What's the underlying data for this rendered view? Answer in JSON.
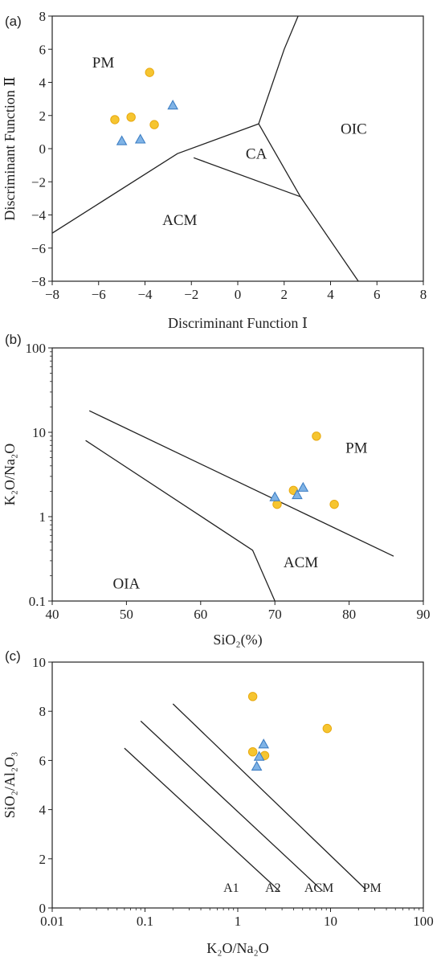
{
  "colors": {
    "circle_fill": "#F6C530",
    "circle_stroke": "#E8A90F",
    "triangle_fill": "#7FB3E6",
    "triangle_stroke": "#3E7FC4",
    "line": "#222222"
  },
  "chart_data": [
    {
      "panel_label": "(a)",
      "type": "scatter",
      "xlabel": "Discriminant Function Ⅰ",
      "ylabel": "Discriminant Function Ⅱ",
      "xlim": [
        -8,
        8
      ],
      "ylim": [
        -8,
        8
      ],
      "xticks": [
        -8,
        -6,
        -4,
        -2,
        0,
        2,
        4,
        6,
        8
      ],
      "yticks": [
        -8,
        -6,
        -4,
        -2,
        0,
        2,
        4,
        6,
        8
      ],
      "xtick_labels": [
        "−8",
        "−6",
        "−4",
        "−2",
        "0",
        "2",
        "4",
        "6",
        "8"
      ],
      "ytick_labels": [
        "−8",
        "−6",
        "−4",
        "−2",
        "0",
        "2",
        "4",
        "6",
        "8"
      ],
      "boundaries": [
        [
          [
            -8,
            -5.1
          ],
          [
            -2.6,
            -0.3
          ],
          [
            0.9,
            1.5
          ]
        ],
        [
          [
            0.9,
            1.5
          ],
          [
            2.0,
            6.0
          ],
          [
            2.6,
            8.0
          ]
        ],
        [
          [
            0.9,
            1.5
          ],
          [
            2.7,
            -2.9
          ]
        ],
        [
          [
            -1.9,
            -0.55
          ],
          [
            2.7,
            -2.9
          ]
        ],
        [
          [
            2.7,
            -2.9
          ],
          [
            5.2,
            -8.0
          ]
        ]
      ],
      "regions": [
        {
          "label": "PM",
          "x": -5.8,
          "y": 4.9
        },
        {
          "label": "CA",
          "x": 0.8,
          "y": -0.6
        },
        {
          "label": "OIC",
          "x": 5.0,
          "y": 0.9
        },
        {
          "label": "ACM",
          "x": -2.5,
          "y": -4.6
        }
      ],
      "series": [
        {
          "marker": "circle",
          "points": [
            [
              -3.8,
              4.6
            ],
            [
              -4.6,
              1.9
            ],
            [
              -5.3,
              1.75
            ],
            [
              -3.6,
              1.45
            ]
          ]
        },
        {
          "marker": "triangle",
          "points": [
            [
              -2.8,
              2.6
            ],
            [
              -5.0,
              0.45
            ],
            [
              -4.2,
              0.55
            ]
          ]
        }
      ]
    },
    {
      "panel_label": "(b)",
      "type": "scatter",
      "xlabel": "SiO₂(%)",
      "ylabel": "K₂O/Na₂O",
      "xlim": [
        40,
        90
      ],
      "ylim": [
        0.1,
        100
      ],
      "yscale": "log",
      "xticks": [
        40,
        50,
        60,
        70,
        80,
        90
      ],
      "yticks": [
        0.1,
        1,
        10,
        100
      ],
      "xtick_labels": [
        "40",
        "50",
        "60",
        "70",
        "80",
        "90"
      ],
      "ytick_labels": [
        "0.1",
        "1",
        "10",
        "100"
      ],
      "boundaries": [
        [
          [
            45,
            18
          ],
          [
            86,
            0.34
          ]
        ],
        [
          [
            44.5,
            8
          ],
          [
            67,
            0.4
          ],
          [
            70,
            0.1
          ]
        ]
      ],
      "regions": [
        {
          "label": "PM",
          "x": 81,
          "y": 5.7
        },
        {
          "label": "ACM",
          "x": 73.5,
          "y": 0.25
        },
        {
          "label": "OIA",
          "x": 50,
          "y": 0.14
        }
      ],
      "series": [
        {
          "marker": "circle",
          "points": [
            [
              75.6,
              9.0
            ],
            [
              72.5,
              2.05
            ],
            [
              70.3,
              1.4
            ],
            [
              78,
              1.4
            ]
          ]
        },
        {
          "marker": "triangle",
          "points": [
            [
              73.8,
              2.2
            ],
            [
              70,
              1.7
            ],
            [
              73,
              1.8
            ]
          ]
        }
      ]
    },
    {
      "panel_label": "(c)",
      "type": "scatter",
      "xlabel": "K₂O/Na₂O",
      "ylabel": "SiO₂/Al₂O₃",
      "xlim": [
        0.01,
        100
      ],
      "ylim": [
        0,
        10
      ],
      "xscale": "log",
      "xticks": [
        0.01,
        0.1,
        1,
        10,
        100
      ],
      "yticks": [
        0,
        2,
        4,
        6,
        8,
        10
      ],
      "xtick_labels": [
        "0.01",
        "0.1",
        "1",
        "10",
        "100"
      ],
      "ytick_labels": [
        "0",
        "2",
        "4",
        "6",
        "8",
        "10"
      ],
      "boundaries": [
        {
          "label": "A1",
          "points": [
            [
              0.06,
              6.5
            ],
            [
              2.8,
              0.7
            ]
          ]
        },
        {
          "label": "A2",
          "points": [
            [
              0.09,
              7.6
            ],
            [
              8.2,
              0.7
            ]
          ]
        },
        {
          "label": "ACM",
          "points": [
            [
              0.2,
              8.3
            ],
            [
              24,
              0.75
            ]
          ]
        }
      ],
      "line_labels": [
        {
          "label": "A1",
          "x": 0.85,
          "y": 0.85
        },
        {
          "label": "A2",
          "x": 2.4,
          "y": 0.85
        },
        {
          "label": "ACM",
          "x": 7.5,
          "y": 0.85
        },
        {
          "label": "PM",
          "x": 28,
          "y": 0.85
        }
      ],
      "series": [
        {
          "marker": "circle",
          "points": [
            [
              1.45,
              8.6
            ],
            [
              9.2,
              7.3
            ],
            [
              1.45,
              6.35
            ],
            [
              1.95,
              6.2
            ]
          ]
        },
        {
          "marker": "triangle",
          "points": [
            [
              1.9,
              6.65
            ],
            [
              1.7,
              6.15
            ],
            [
              1.6,
              5.75
            ]
          ]
        }
      ]
    }
  ]
}
